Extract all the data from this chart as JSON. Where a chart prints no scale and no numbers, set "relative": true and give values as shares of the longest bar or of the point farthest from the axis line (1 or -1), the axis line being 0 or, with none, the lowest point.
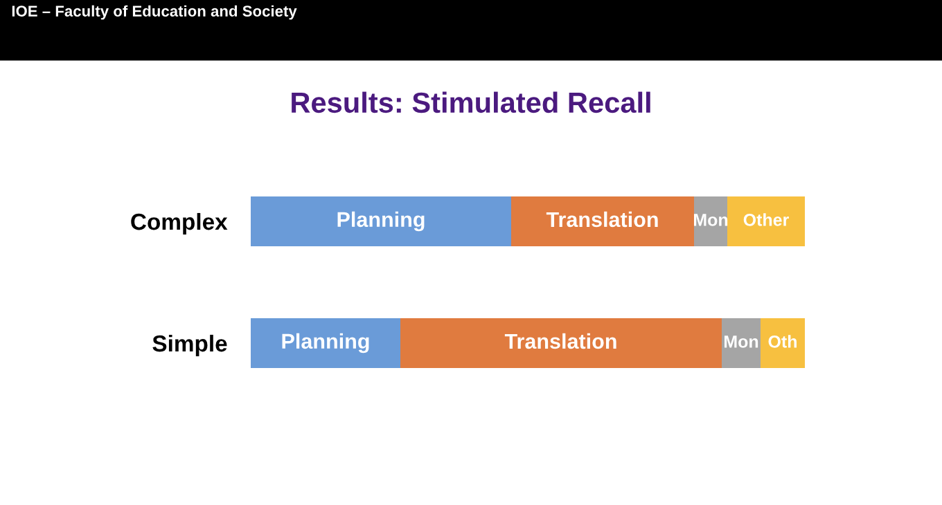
{
  "chart_data": {
    "type": "bar",
    "orientation": "horizontal",
    "stacked": true,
    "relative": true,
    "title": "Results: Stimulated Recall",
    "annotations": [
      "IOE – Faculty of Education and Society",
      "Planning",
      "Translation",
      "Mon",
      "Other",
      "Planning",
      "Translation",
      "Mon",
      "Oth"
    ],
    "categories": [
      "Complex",
      "Simple"
    ],
    "series": [
      {
        "color": "#6a9bd8",
        "values": [
          0.47,
          0.27
        ]
      },
      {
        "color": "#e07b3f",
        "values": [
          0.33,
          0.58
        ]
      },
      {
        "color": "#a5a5a5",
        "values": [
          0.06,
          0.07
        ]
      },
      {
        "color": "#f7c040",
        "values": [
          0.14,
          0.08
        ]
      }
    ]
  }
}
